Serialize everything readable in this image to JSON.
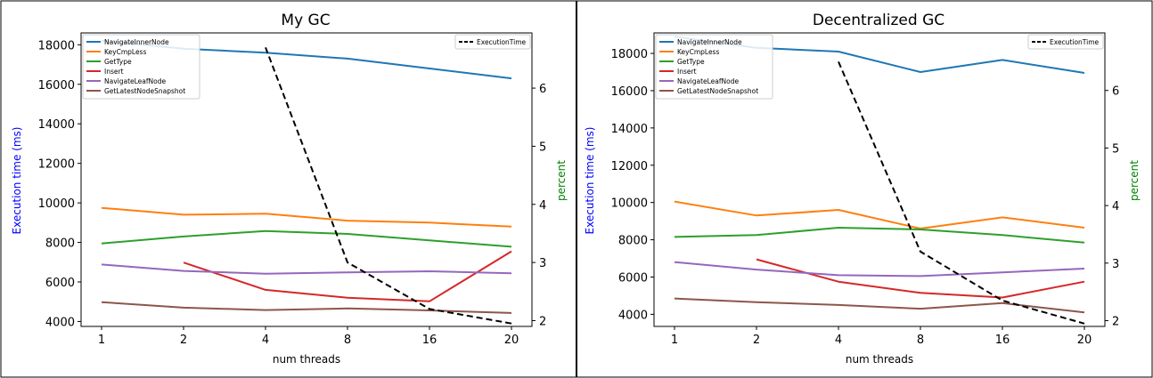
{
  "chart_data": [
    {
      "type": "line",
      "title": "My GC",
      "xlabel": "num threads",
      "ylabel": "Execution time (ms)",
      "ylabel_right": "percent",
      "categories": [
        "1",
        "2",
        "4",
        "8",
        "16",
        "20"
      ],
      "ylim": [
        3750,
        18600
      ],
      "ylim_right": [
        1.9,
        6.95
      ],
      "yticks": [
        4000,
        6000,
        8000,
        10000,
        12000,
        14000,
        16000,
        18000
      ],
      "yticks_right": [
        2,
        3,
        4,
        5,
        6
      ],
      "grid": false,
      "legend_left_position": "top-left",
      "legend_right_position": "top-right",
      "series": [
        {
          "name": "NavigateInnerNode",
          "color": "#1f77b4",
          "values": [
            18200,
            17800,
            17600,
            17300,
            16800,
            16300
          ]
        },
        {
          "name": "KeyCmpLess",
          "color": "#ff7f0e",
          "values": [
            9750,
            9400,
            9450,
            9100,
            9000,
            8800
          ]
        },
        {
          "name": "GetType",
          "color": "#2ca02c",
          "values": [
            7950,
            8300,
            8580,
            8430,
            8100,
            7780
          ]
        },
        {
          "name": "Insert",
          "color": "#d62728",
          "values": [
            null,
            6980,
            5600,
            5200,
            5020,
            7550
          ]
        },
        {
          "name": "NavigateLeafNode",
          "color": "#9467bd",
          "values": [
            6880,
            6560,
            6420,
            6480,
            6540,
            6440
          ]
        },
        {
          "name": "GetLatestNodeSnapshot",
          "color": "#8c564b",
          "values": [
            4980,
            4700,
            4580,
            4660,
            4560,
            4430
          ]
        }
      ],
      "right_series": [
        {
          "name": "ExecutionTime",
          "color": "#000000",
          "style": "dashed",
          "values": [
            null,
            null,
            6.7,
            3.0,
            2.2,
            1.95
          ]
        }
      ]
    },
    {
      "type": "line",
      "title": "Decentralized GC",
      "xlabel": "num threads",
      "ylabel": "Execution time (ms)",
      "ylabel_right": "percent",
      "categories": [
        "1",
        "2",
        "4",
        "8",
        "16",
        "20"
      ],
      "ylim": [
        3350,
        19100
      ],
      "ylim_right": [
        1.9,
        7.0
      ],
      "yticks": [
        4000,
        6000,
        8000,
        10000,
        12000,
        14000,
        16000,
        18000
      ],
      "yticks_right": [
        2,
        3,
        4,
        5,
        6
      ],
      "grid": false,
      "legend_left_position": "top-left",
      "legend_right_position": "top-right",
      "series": [
        {
          "name": "NavigateInnerNode",
          "color": "#1f77b4",
          "values": [
            18900,
            18300,
            18100,
            17000,
            17650,
            16950
          ]
        },
        {
          "name": "KeyCmpLess",
          "color": "#ff7f0e",
          "values": [
            10050,
            9300,
            9600,
            8600,
            9200,
            8650
          ]
        },
        {
          "name": "GetType",
          "color": "#2ca02c",
          "values": [
            8150,
            8250,
            8650,
            8550,
            8250,
            7850
          ]
        },
        {
          "name": "Insert",
          "color": "#d62728",
          "values": [
            null,
            6950,
            5750,
            5150,
            4900,
            5750
          ]
        },
        {
          "name": "NavigateLeafNode",
          "color": "#9467bd",
          "values": [
            6800,
            6400,
            6100,
            6050,
            6250,
            6450
          ]
        },
        {
          "name": "GetLatestNodeSnapshot",
          "color": "#8c564b",
          "values": [
            4850,
            4650,
            4500,
            4300,
            4600,
            4100
          ]
        }
      ],
      "right_series": [
        {
          "name": "ExecutionTime",
          "color": "#000000",
          "style": "dashed",
          "values": [
            null,
            null,
            6.5,
            3.2,
            2.35,
            1.95
          ]
        }
      ]
    }
  ],
  "colors": {
    "left_axis_label": "#0000ff",
    "right_axis_label": "#008000",
    "frame": "#000000"
  }
}
